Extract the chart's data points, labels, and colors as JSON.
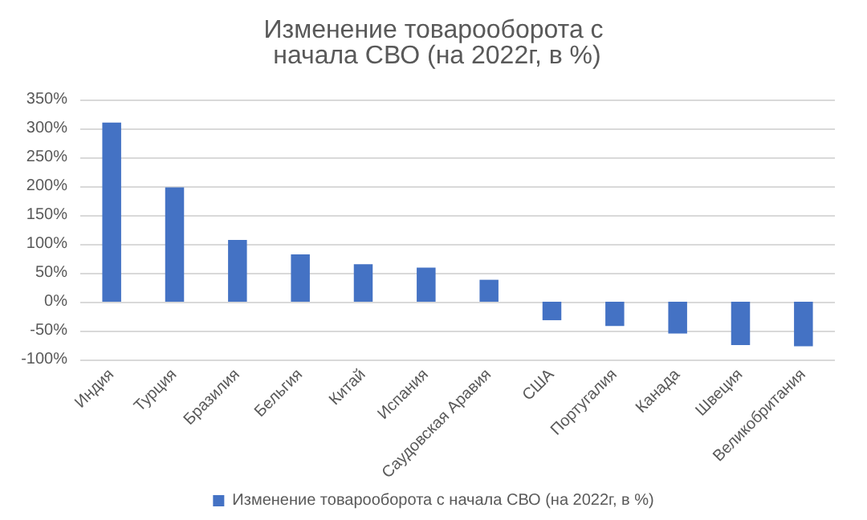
{
  "chart_data": {
    "type": "bar",
    "title": "Изменение товарооборота с начала СВО (на 2022г, в %)",
    "categories": [
      "Индия",
      "Турция",
      "Бразилия",
      "Бельгия",
      "Китай",
      "Испания",
      "Саудовская Аравия",
      "США",
      "Португалия",
      "Канада",
      "Швеция",
      "Великобритания"
    ],
    "series": [
      {
        "name": "Изменение товарооборота с начала СВО (на 2022г, в %)",
        "color": "#4472c4",
        "values": [
          310,
          198,
          107,
          82,
          65,
          59,
          38,
          -32,
          -42,
          -55,
          -75,
          -77
        ]
      }
    ],
    "ylim": [
      -100,
      350
    ],
    "yticks": [
      {
        "value": -100,
        "label": "-100%"
      },
      {
        "value": -50,
        "label": "-50%"
      },
      {
        "value": 0,
        "label": "0%"
      },
      {
        "value": 50,
        "label": "50%"
      },
      {
        "value": 100,
        "label": "100%"
      },
      {
        "value": 150,
        "label": "150%"
      },
      {
        "value": 200,
        "label": "200%"
      },
      {
        "value": 250,
        "label": "250%"
      },
      {
        "value": 300,
        "label": "300%"
      },
      {
        "value": 350,
        "label": "350%"
      }
    ],
    "grid": "y",
    "legend": "bottom"
  }
}
